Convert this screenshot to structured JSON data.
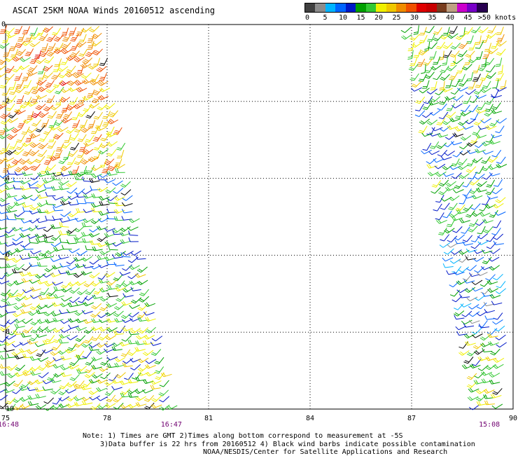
{
  "title": "ASCAT 25KM NOAA Winds 20160512 ascending",
  "colorbar": {
    "colors": [
      "#404040",
      "#8c8c8c",
      "#00b4ff",
      "#0064ff",
      "#0018c8",
      "#00a000",
      "#32c832",
      "#f0f000",
      "#f0c800",
      "#f08c00",
      "#f05000",
      "#e00000",
      "#c80000",
      "#783c1e",
      "#bea082",
      "#cc00cc",
      "#7800c8",
      "#280050"
    ],
    "labels": [
      "0",
      "5",
      "10",
      "15",
      "20",
      "25",
      "30",
      "35",
      "40",
      "45",
      ">50 knots"
    ]
  },
  "x_ticks": [
    "75",
    "78",
    "81",
    "84",
    "87",
    "90"
  ],
  "y_ticks": [
    "0",
    "-2",
    "-4",
    "-6",
    "-8",
    "-10"
  ],
  "times": [
    "16:48",
    "16:47",
    "15:08"
  ],
  "notes": [
    "Note: 1) Times are GMT 2)Times along bottom correspond to measurement at -5S",
    "3)Data buffer is 22 hrs from 20160512 4) Black wind barbs indicate possible contamination",
    "NOAA/NESDIS/Center for Satellite Applications and Research"
  ],
  "chart_data": {
    "type": "wind-barb-map",
    "lon_range": [
      75,
      90
    ],
    "lat_range": [
      -10,
      0
    ],
    "grid": true,
    "swaths": [
      {
        "name": "",
        "time": "16:48",
        "lon_top": [
          75,
          78
        ],
        "lon_bottom": [
          75,
          80.3
        ],
        "regions": [
          {
            "lat": [
              -3.8,
              0
            ],
            "speed_knots": 25,
            "dir_deg": 130
          },
          {
            "lat": [
              -6.3,
              -3.8
            ],
            "speed_knots": 15,
            "dir_deg": 160
          },
          {
            "lat": [
              -10,
              -6.3
            ],
            "speed_knots": 18,
            "dir_deg": 150
          }
        ]
      },
      {
        "name": "",
        "time": "15:08",
        "lon_top": [
          86.9,
          90
        ],
        "lon_bottom": [
          89.0,
          90
        ],
        "regions": [
          {
            "lat": [
              -1.5,
              0
            ],
            "speed_knots": 20,
            "dir_deg": 120
          },
          {
            "lat": [
              -5.5,
              -1.5
            ],
            "speed_knots": 15,
            "dir_deg": 140
          },
          {
            "lat": [
              -8.0,
              -5.5
            ],
            "speed_knots": 10,
            "dir_deg": 150
          },
          {
            "lat": [
              -10,
              -8.0
            ],
            "speed_knots": 18,
            "dir_deg": 150
          }
        ]
      }
    ]
  }
}
